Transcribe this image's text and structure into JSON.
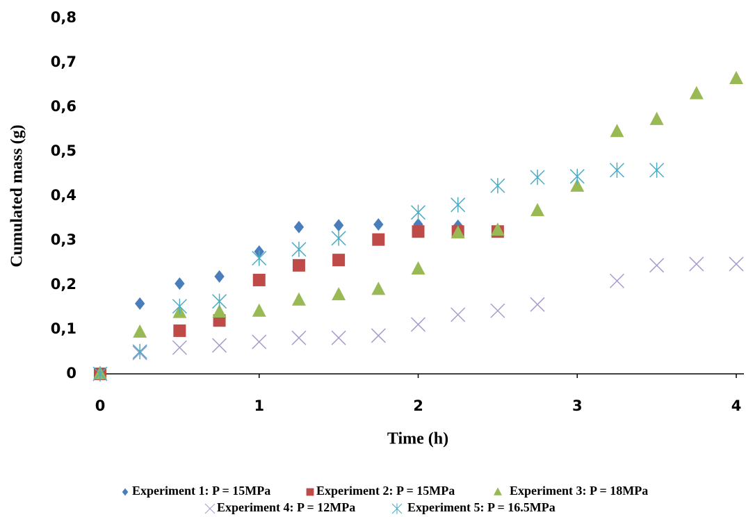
{
  "chart_data": {
    "type": "scatter",
    "x_label": "Time (h)",
    "y_label": "Cumulated mass  (g)",
    "xlim": [
      0,
      4
    ],
    "xticks": [
      0,
      1,
      2,
      3,
      4
    ],
    "ylim": [
      0,
      0.8
    ],
    "yticks": [
      0,
      {
        "value": 0.1,
        "label": "0,1"
      },
      {
        "value": 0.2,
        "label": "0,2"
      },
      {
        "value": 0.3,
        "label": "0,3"
      },
      {
        "value": 0.4,
        "label": "0,4"
      },
      {
        "value": 0.5,
        "label": "0,5"
      },
      {
        "value": 0.6,
        "label": "0,6"
      },
      {
        "value": 0.7,
        "label": "0,7"
      },
      {
        "value": 0.8,
        "label": "0,8"
      }
    ],
    "grid": false,
    "legend": "bottom",
    "series": [
      {
        "name": "Experiment 1: P = 15MPa",
        "color": "#4a7ebb",
        "marker": "diamond",
        "x": [
          0,
          0.25,
          0.5,
          0.75,
          1,
          1.25,
          1.5,
          1.75,
          2,
          2.25
        ],
        "values": [
          0,
          0.158,
          0.203,
          0.219,
          0.275,
          0.33,
          0.334,
          0.336,
          0.336,
          0.333
        ]
      },
      {
        "name": "Experiment 2: P = 15MPa",
        "color": "#be4b48",
        "marker": "square",
        "x": [
          0,
          0.5,
          0.75,
          1,
          1.25,
          1.5,
          1.75,
          2,
          2.25,
          2.5
        ],
        "values": [
          0,
          0.097,
          0.12,
          0.211,
          0.244,
          0.256,
          0.302,
          0.32,
          0.32,
          0.32
        ]
      },
      {
        "name": "Experiment 3: P = 18MPa",
        "color": "#98b954",
        "marker": "triangle",
        "x": [
          0,
          0.25,
          0.5,
          0.75,
          1,
          1.25,
          1.5,
          1.75,
          2,
          2.25,
          2.5,
          2.75,
          3,
          3.25,
          3.5,
          3.75,
          4
        ],
        "values": [
          0,
          0.094,
          0.138,
          0.139,
          0.141,
          0.166,
          0.178,
          0.19,
          0.236,
          0.317,
          0.323,
          0.367,
          0.422,
          0.545,
          0.572,
          0.63,
          0.664
        ]
      },
      {
        "name": "Experiment 4: P = 12MPa",
        "color": "#a99bce",
        "marker": "x",
        "x": [
          0.25,
          0.5,
          0.75,
          1,
          1.25,
          1.5,
          1.75,
          2,
          2.25,
          2.5,
          2.75,
          3.25,
          3.5,
          3.75,
          4
        ],
        "values": [
          0.047,
          0.059,
          0.064,
          0.072,
          0.081,
          0.081,
          0.086,
          0.111,
          0.133,
          0.142,
          0.156,
          0.209,
          0.244,
          0.247,
          0.247
        ]
      },
      {
        "name": "Experiment 5: P = 16.5MPa",
        "color": "#4bacc6",
        "marker": "asterisk",
        "x": [
          0,
          0.25,
          0.5,
          0.75,
          1,
          1.25,
          1.5,
          2,
          2.25,
          2.5,
          2.75,
          3,
          3.25,
          3.5
        ],
        "values": [
          0,
          0.05,
          0.152,
          0.163,
          0.26,
          0.28,
          0.305,
          0.363,
          0.38,
          0.423,
          0.442,
          0.444,
          0.458,
          0.458
        ]
      }
    ]
  }
}
